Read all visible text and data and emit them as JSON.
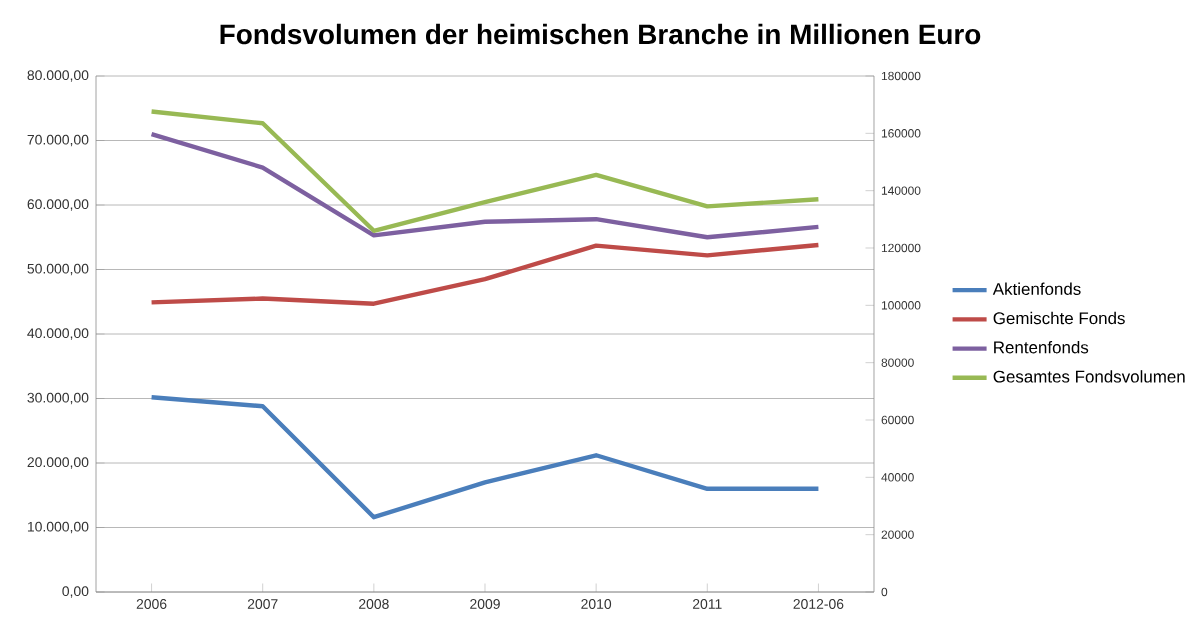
{
  "chart_data": {
    "type": "line",
    "title": "Fondsvolumen der heimischen Branche in Millionen Euro",
    "categories": [
      "2006",
      "2007",
      "2008",
      "2009",
      "2010",
      "2011",
      "2012-06"
    ],
    "series": [
      {
        "name": "Aktienfonds",
        "color": "#4a7ebb",
        "values": [
          30200,
          28800,
          11600,
          17000,
          21200,
          16000,
          16000
        ]
      },
      {
        "name": "Gemischte Fonds",
        "color": "#be4b48",
        "values": [
          44900,
          45500,
          44700,
          48500,
          53700,
          52200,
          53800
        ]
      },
      {
        "name": "Rentenfonds",
        "color": "#7d60a0",
        "values": [
          71000,
          65800,
          55300,
          57400,
          57800,
          55000,
          56600
        ]
      },
      {
        "name": "Gesamtes Fondsvolumen",
        "color": "#98b954",
        "axis": "y2",
        "values": [
          167600,
          163500,
          126000,
          136000,
          145500,
          134500,
          137000
        ]
      }
    ],
    "ylim": [
      0,
      80000
    ],
    "yticks": [
      {
        "value": 0,
        "label": "0,00"
      },
      {
        "value": 10000,
        "label": "10.000,00"
      },
      {
        "value": 20000,
        "label": "20.000,00"
      },
      {
        "value": 30000,
        "label": "30.000,00"
      },
      {
        "value": 40000,
        "label": "40.000,00"
      },
      {
        "value": 50000,
        "label": "50.000,00"
      },
      {
        "value": 60000,
        "label": "60.000,00"
      },
      {
        "value": 70000,
        "label": "70.000,00"
      },
      {
        "value": 80000,
        "label": "80.000,00"
      }
    ],
    "y2lim": [
      0,
      180000
    ],
    "y2ticks": [
      0,
      20000,
      40000,
      60000,
      80000,
      100000,
      120000,
      140000,
      160000,
      180000
    ],
    "grid": "y",
    "legend": "right",
    "marker": "none",
    "line_style": "solid"
  }
}
